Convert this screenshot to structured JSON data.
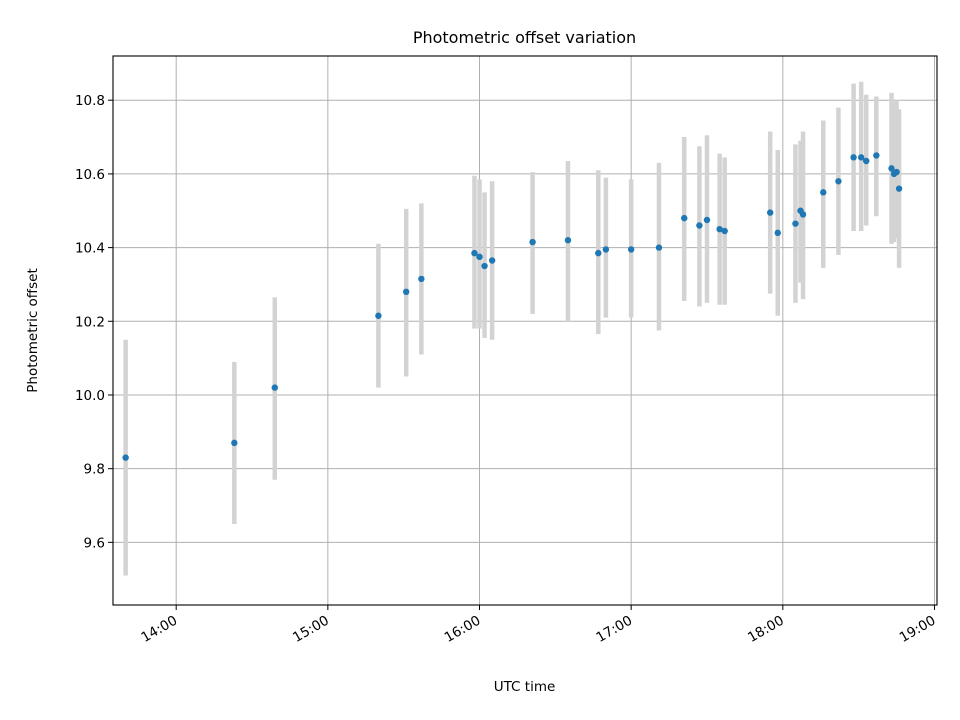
{
  "chart_data": {
    "type": "scatter",
    "title": "Photometric offset variation",
    "xlabel": "UTC time",
    "ylabel": "Photometric offset",
    "xlim": [
      "13:35",
      "19:01"
    ],
    "ylim": [
      9.43,
      10.92
    ],
    "grid": true,
    "x_ticks": [
      "14:00",
      "15:00",
      "16:00",
      "17:00",
      "18:00",
      "19:00"
    ],
    "y_ticks": [
      "9.6",
      "9.8",
      "10.0",
      "10.2",
      "10.4",
      "10.6",
      "10.8"
    ],
    "colors": {
      "point": "#1f77b4",
      "errorbar": "#d3d3d3"
    },
    "points": [
      {
        "x": "13:40",
        "y": 9.83,
        "ylo": 9.51,
        "yhi": 10.15
      },
      {
        "x": "14:23",
        "y": 9.87,
        "ylo": 9.65,
        "yhi": 10.09
      },
      {
        "x": "14:39",
        "y": 10.02,
        "ylo": 9.77,
        "yhi": 10.265
      },
      {
        "x": "15:20",
        "y": 10.215,
        "ylo": 10.02,
        "yhi": 10.41
      },
      {
        "x": "15:31",
        "y": 10.28,
        "ylo": 10.05,
        "yhi": 10.505
      },
      {
        "x": "15:37",
        "y": 10.315,
        "ylo": 10.11,
        "yhi": 10.52
      },
      {
        "x": "15:58",
        "y": 10.385,
        "ylo": 10.18,
        "yhi": 10.595
      },
      {
        "x": "16:00",
        "y": 10.375,
        "ylo": 10.18,
        "yhi": 10.585
      },
      {
        "x": "16:02",
        "y": 10.35,
        "ylo": 10.155,
        "yhi": 10.55
      },
      {
        "x": "16:05",
        "y": 10.365,
        "ylo": 10.15,
        "yhi": 10.58
      },
      {
        "x": "16:21",
        "y": 10.415,
        "ylo": 10.22,
        "yhi": 10.605
      },
      {
        "x": "16:35",
        "y": 10.42,
        "ylo": 10.2,
        "yhi": 10.635
      },
      {
        "x": "16:47",
        "y": 10.385,
        "ylo": 10.165,
        "yhi": 10.61
      },
      {
        "x": "16:50",
        "y": 10.395,
        "ylo": 10.21,
        "yhi": 10.59
      },
      {
        "x": "17:00",
        "y": 10.395,
        "ylo": 10.21,
        "yhi": 10.585
      },
      {
        "x": "17:11",
        "y": 10.4,
        "ylo": 10.175,
        "yhi": 10.63
      },
      {
        "x": "17:21",
        "y": 10.48,
        "ylo": 10.255,
        "yhi": 10.7
      },
      {
        "x": "17:27",
        "y": 10.46,
        "ylo": 10.24,
        "yhi": 10.675
      },
      {
        "x": "17:30",
        "y": 10.475,
        "ylo": 10.25,
        "yhi": 10.705
      },
      {
        "x": "17:35",
        "y": 10.45,
        "ylo": 10.245,
        "yhi": 10.655
      },
      {
        "x": "17:37",
        "y": 10.445,
        "ylo": 10.245,
        "yhi": 10.645
      },
      {
        "x": "17:55",
        "y": 10.495,
        "ylo": 10.275,
        "yhi": 10.715
      },
      {
        "x": "17:58",
        "y": 10.44,
        "ylo": 10.215,
        "yhi": 10.665
      },
      {
        "x": "18:05",
        "y": 10.465,
        "ylo": 10.25,
        "yhi": 10.68
      },
      {
        "x": "18:07",
        "y": 10.5,
        "ylo": 10.305,
        "yhi": 10.69
      },
      {
        "x": "18:08",
        "y": 10.49,
        "ylo": 10.26,
        "yhi": 10.715
      },
      {
        "x": "18:16",
        "y": 10.55,
        "ylo": 10.345,
        "yhi": 10.745
      },
      {
        "x": "18:22",
        "y": 10.58,
        "ylo": 10.38,
        "yhi": 10.78
      },
      {
        "x": "18:28",
        "y": 10.645,
        "ylo": 10.445,
        "yhi": 10.845
      },
      {
        "x": "18:31",
        "y": 10.645,
        "ylo": 10.445,
        "yhi": 10.85
      },
      {
        "x": "18:33",
        "y": 10.635,
        "ylo": 10.46,
        "yhi": 10.815
      },
      {
        "x": "18:37",
        "y": 10.65,
        "ylo": 10.485,
        "yhi": 10.81
      },
      {
        "x": "18:43",
        "y": 10.615,
        "ylo": 10.41,
        "yhi": 10.82
      },
      {
        "x": "18:44",
        "y": 10.6,
        "ylo": 10.415,
        "yhi": 10.795
      },
      {
        "x": "18:45",
        "y": 10.605,
        "ylo": 10.425,
        "yhi": 10.8
      },
      {
        "x": "18:46",
        "y": 10.56,
        "ylo": 10.345,
        "yhi": 10.775
      }
    ]
  }
}
